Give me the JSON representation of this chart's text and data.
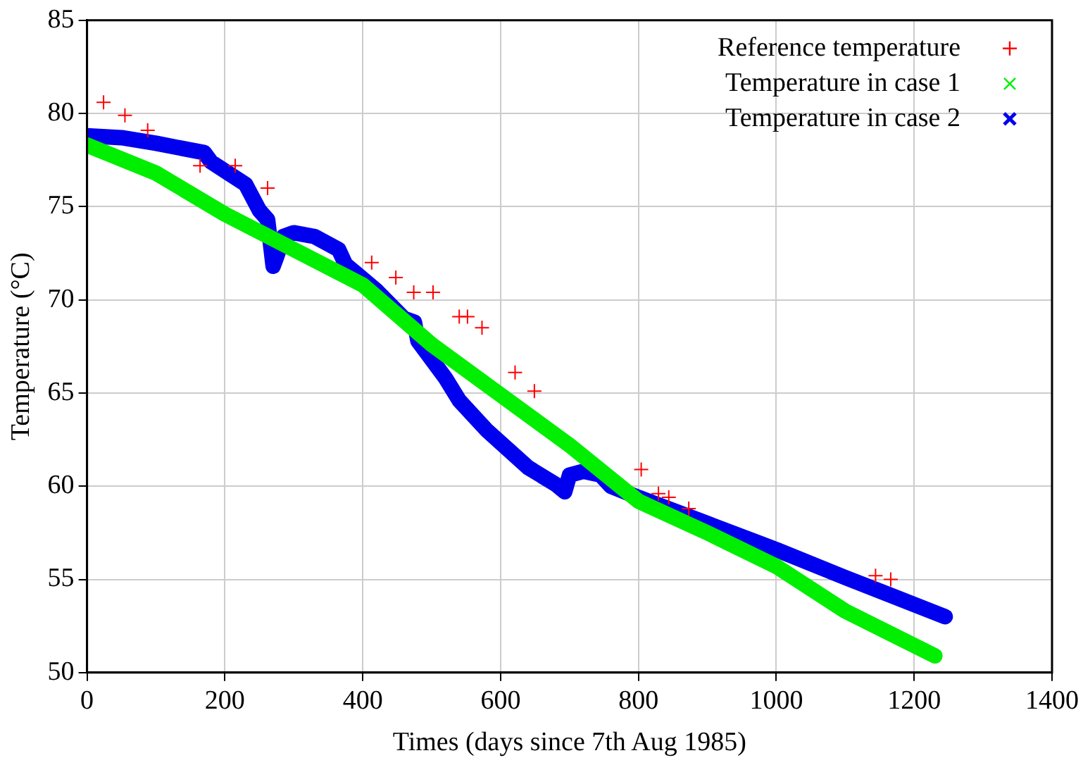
{
  "chart_data": {
    "type": "line",
    "xlabel": "Times (days since 7th Aug 1985)",
    "ylabel": "Temperature (°C)",
    "xlim": [
      0,
      1400
    ],
    "xticks": [
      0,
      200,
      400,
      600,
      800,
      1000,
      1200,
      1400
    ],
    "ylim": [
      50,
      85
    ],
    "yticks": [
      50,
      55,
      60,
      65,
      70,
      75,
      80,
      85
    ],
    "grid": true,
    "legend": "top right",
    "series": [
      {
        "name": "Reference temperature",
        "type": "scatter",
        "marker": "cross",
        "color": "#ff0000",
        "x": [
          24,
          55,
          88,
          164,
          215,
          262,
          413,
          448,
          474,
          502,
          540,
          552,
          573,
          621,
          649,
          804,
          829,
          844,
          873,
          1144,
          1166
        ],
        "values": [
          80.6,
          79.9,
          79.1,
          77.2,
          77.2,
          76.0,
          72.0,
          71.2,
          70.4,
          70.4,
          69.1,
          69.1,
          68.5,
          66.1,
          65.1,
          60.9,
          59.6,
          59.4,
          58.8,
          55.2,
          55.0
        ]
      },
      {
        "name": "Temperature in case 1",
        "color": "#00ee00",
        "x": [
          0,
          100,
          200,
          300,
          400,
          500,
          600,
          700,
          800,
          900,
          1000,
          1100,
          1230
        ],
        "values": [
          78.3,
          76.8,
          74.6,
          72.7,
          70.8,
          67.6,
          64.9,
          62.2,
          59.2,
          57.5,
          55.7,
          53.3,
          50.9
        ]
      },
      {
        "name": "Temperature in case 2",
        "color": "#0000ee",
        "x": [
          0,
          50,
          100,
          170,
          180,
          230,
          250,
          262,
          270,
          275,
          285,
          300,
          330,
          365,
          375,
          420,
          460,
          475,
          480,
          520,
          540,
          580,
          640,
          680,
          693,
          700,
          720,
          745,
          760,
          800,
          900,
          1000,
          1100,
          1245
        ],
        "values": [
          78.8,
          78.7,
          78.4,
          77.9,
          77.4,
          76.2,
          74.8,
          74.3,
          71.8,
          72.3,
          73.4,
          73.6,
          73.4,
          72.7,
          71.9,
          70.5,
          69.0,
          68.8,
          67.8,
          65.8,
          64.6,
          63.0,
          61.0,
          60.1,
          59.7,
          60.6,
          60.8,
          60.6,
          60.0,
          59.4,
          58.0,
          56.6,
          55.1,
          53.0
        ]
      }
    ]
  }
}
